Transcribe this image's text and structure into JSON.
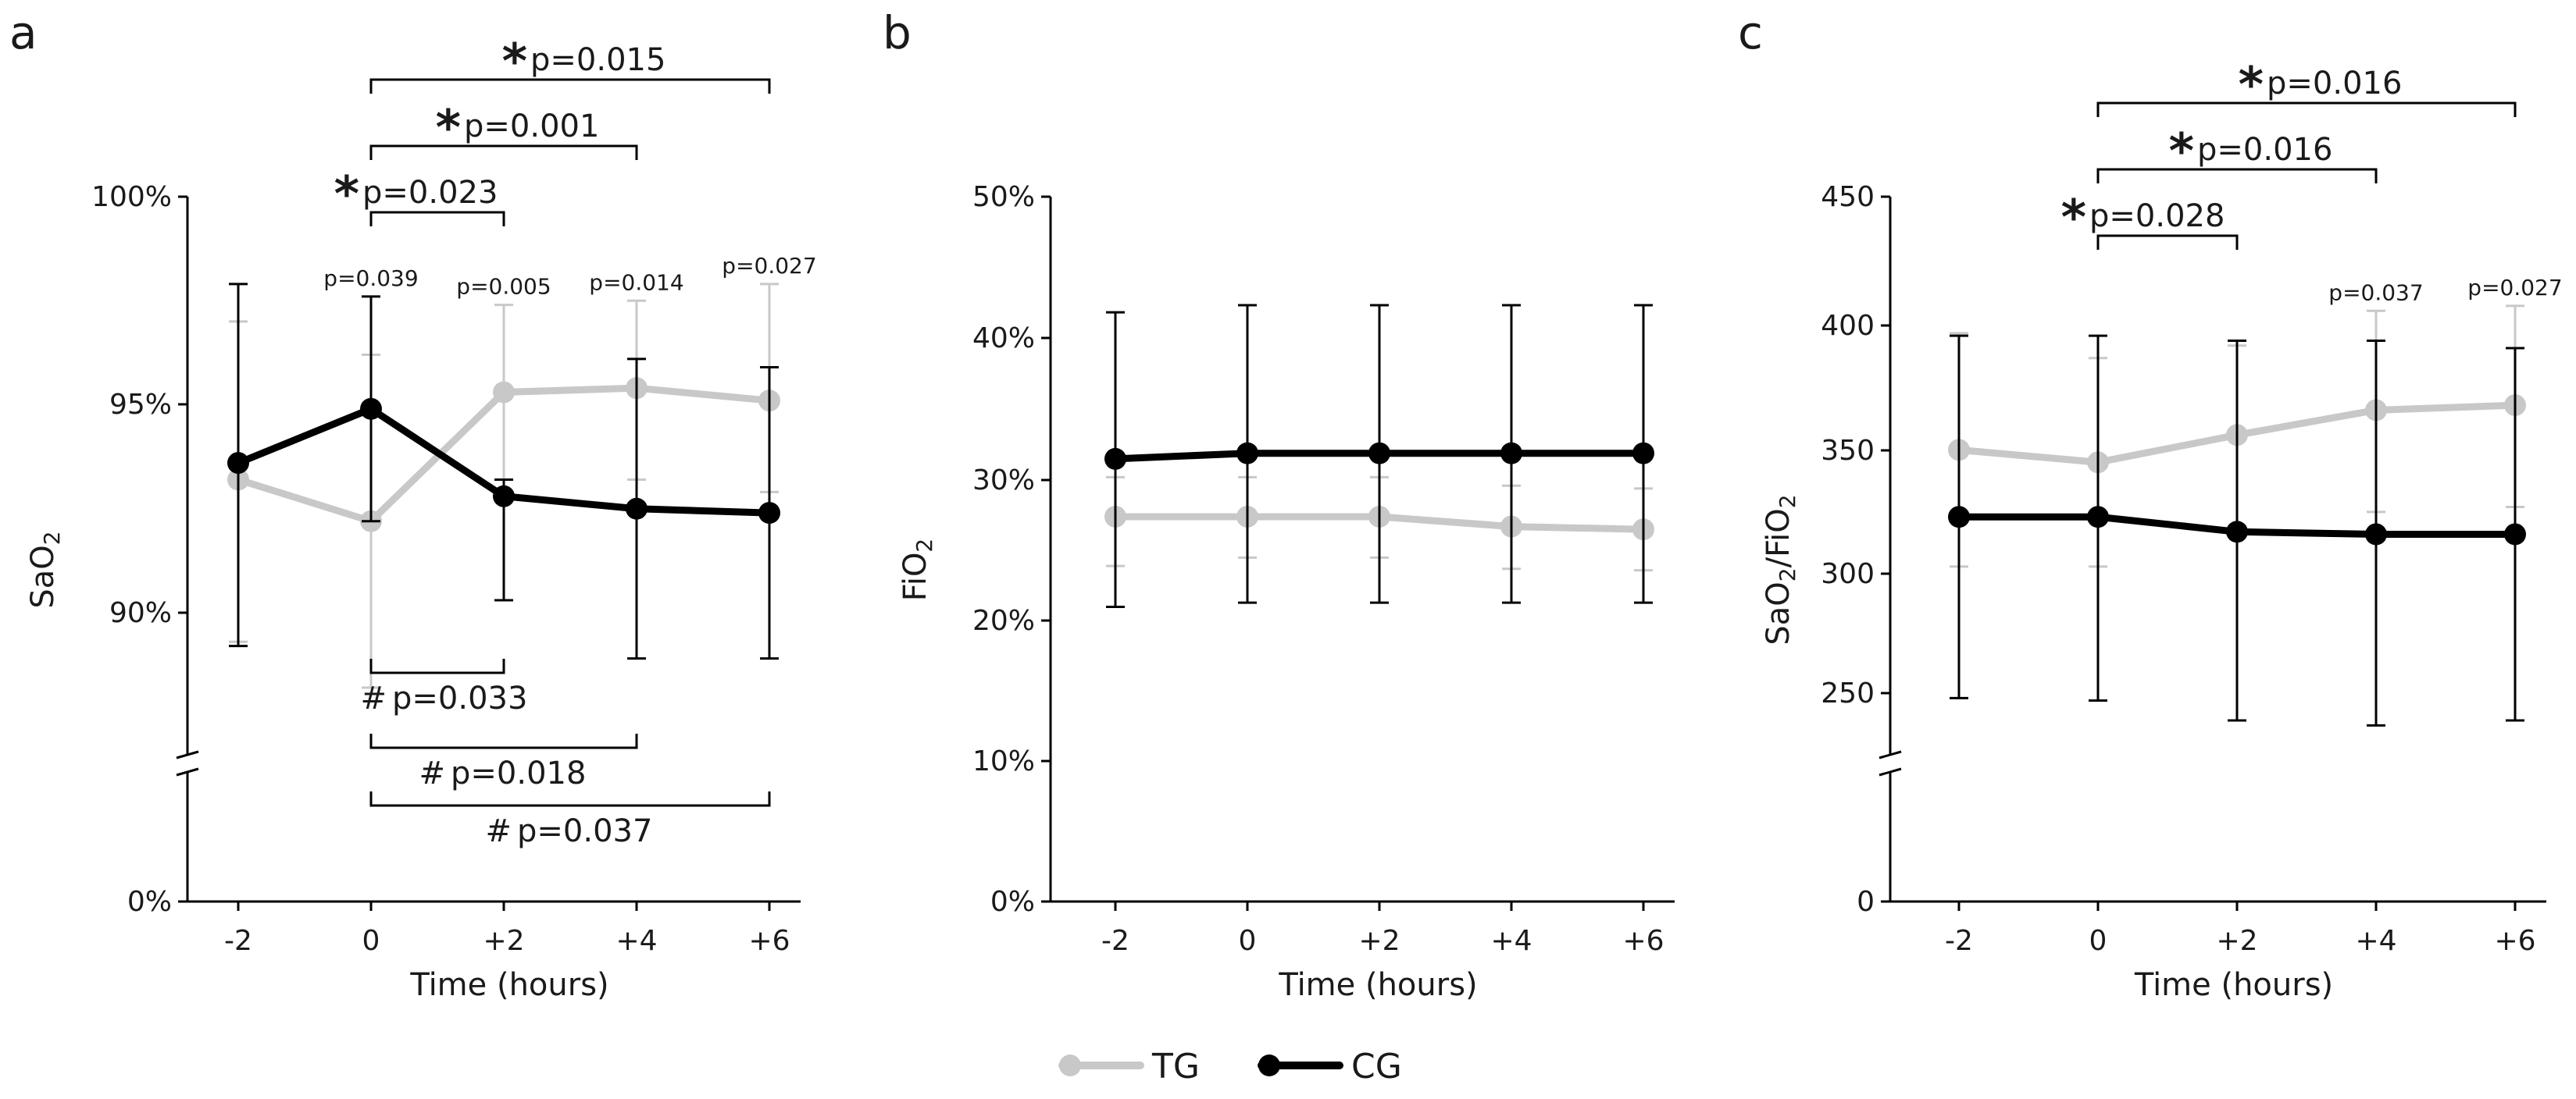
{
  "chart_data": [
    {
      "type": "line",
      "panel": "a",
      "xlabel": "Time (hours)",
      "ylabel": "SaO2",
      "categories": [
        "-2",
        "0",
        "+2",
        "+4",
        "+6"
      ],
      "yticks": [
        "0%",
        "90%",
        "95%",
        "100%"
      ],
      "ylim": [
        88,
        100
      ],
      "axis_break": true,
      "series": [
        {
          "name": "TG",
          "values": [
            93.2,
            92.2,
            95.3,
            95.4,
            95.1
          ],
          "err_low": [
            89.3,
            88.2,
            93.2,
            93.2,
            92.9
          ],
          "err_high": [
            97.0,
            96.2,
            97.4,
            97.5,
            97.9
          ]
        },
        {
          "name": "CG",
          "values": [
            93.6,
            94.9,
            92.8,
            92.5,
            92.4
          ],
          "err_low": [
            89.2,
            92.2,
            90.3,
            88.9,
            88.9
          ],
          "err_high": [
            97.9,
            97.6,
            93.2,
            96.1,
            95.9
          ]
        }
      ],
      "point_labels": [
        {
          "x": "0",
          "text": "p=0.039"
        },
        {
          "x": "+2",
          "text": "p=0.005"
        },
        {
          "x": "+4",
          "text": "p=0.014"
        },
        {
          "x": "+6",
          "text": "p=0.027"
        }
      ],
      "brackets_top": [
        {
          "from": "0",
          "to": "+6",
          "mark": "*",
          "text": "p=0.015"
        },
        {
          "from": "0",
          "to": "+4",
          "mark": "*",
          "text": "p=0.001"
        },
        {
          "from": "0",
          "to": "+2",
          "mark": "*",
          "text": "p=0.023"
        }
      ],
      "brackets_bottom": [
        {
          "from": "0",
          "to": "+2",
          "mark": "#",
          "text": "p=0.033"
        },
        {
          "from": "0",
          "to": "+4",
          "mark": "#",
          "text": "p=0.018"
        },
        {
          "from": "0",
          "to": "+6",
          "mark": "#",
          "text": "p=0.037"
        }
      ]
    },
    {
      "type": "line",
      "panel": "b",
      "xlabel": "Time (hours)",
      "ylabel": "FiO2",
      "categories": [
        "-2",
        "0",
        "+2",
        "+4",
        "+6"
      ],
      "yticks": [
        "0%",
        "10%",
        "20%",
        "30%",
        "40%",
        "50%"
      ],
      "ylim": [
        0,
        50
      ],
      "axis_break": false,
      "series": [
        {
          "name": "TG",
          "values": [
            27.3,
            27.3,
            27.3,
            26.6,
            26.4
          ],
          "err_low": [
            23.8,
            24.4,
            24.4,
            23.6,
            23.5
          ],
          "err_high": [
            30.1,
            30.1,
            30.1,
            29.5,
            29.3
          ]
        },
        {
          "name": "CG",
          "values": [
            31.4,
            31.8,
            31.8,
            31.8,
            31.8
          ],
          "err_low": [
            20.9,
            21.2,
            21.2,
            21.2,
            21.2
          ],
          "err_high": [
            41.8,
            42.3,
            42.3,
            42.3,
            42.3
          ]
        }
      ]
    },
    {
      "type": "line",
      "panel": "c",
      "xlabel": "Time (hours)",
      "ylabel": "SaO2/FiO2",
      "categories": [
        "-2",
        "0",
        "+2",
        "+4",
        "+6"
      ],
      "yticks": [
        "0",
        "250",
        "300",
        "350",
        "400",
        "450"
      ],
      "ylim": [
        225,
        450
      ],
      "axis_break": true,
      "series": [
        {
          "name": "TG",
          "values": [
            348,
            343,
            354,
            364,
            366
          ],
          "err_low": [
            301,
            301,
            317,
            323,
            325
          ],
          "err_high": [
            395,
            385,
            390,
            404,
            406
          ]
        },
        {
          "name": "CG",
          "values": [
            321,
            321,
            315,
            314,
            314
          ],
          "err_low": [
            248,
            247,
            239,
            237,
            239
          ],
          "err_high": [
            394,
            394,
            392,
            392,
            389
          ]
        }
      ],
      "point_labels": [
        {
          "x": "+4",
          "text": "p=0.037"
        },
        {
          "x": "+6",
          "text": "p=0.027"
        }
      ],
      "brackets_top": [
        {
          "from": "0",
          "to": "+6",
          "mark": "*",
          "text": "p=0.016"
        },
        {
          "from": "0",
          "to": "+4",
          "mark": "*",
          "text": "p=0.016"
        },
        {
          "from": "0",
          "to": "+2",
          "mark": "*",
          "text": "p=0.028"
        }
      ]
    }
  ],
  "legend": [
    {
      "name": "TG",
      "color": "#c8c8c8"
    },
    {
      "name": "CG",
      "color": "#000000"
    }
  ]
}
